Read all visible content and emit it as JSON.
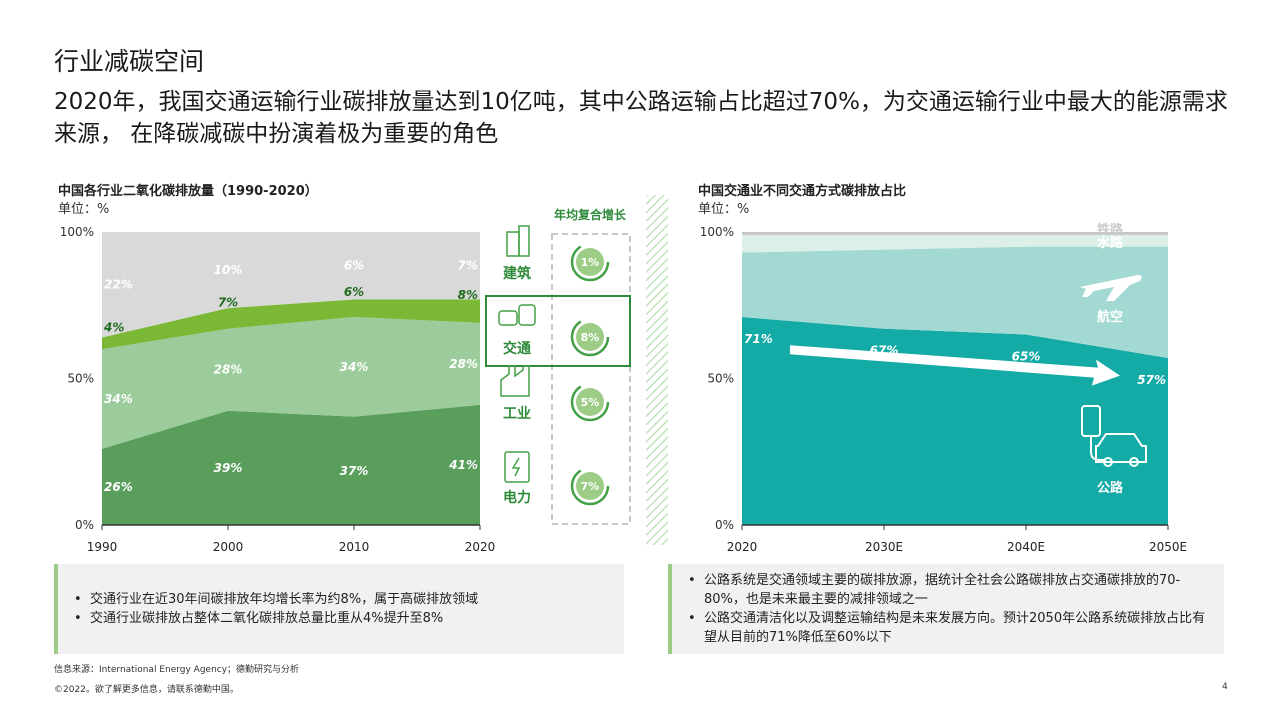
{
  "page": {
    "section_title": "行业减碳空间",
    "headline": "2020年，我国交通运输行业碳排放量达到10亿吨，其中公路运输占比超过70%，为交通运输行业中最大的能源需求来源， 在降碳减碳中扮演着极为重要的角色",
    "source": "信息来源：International Energy Agency；德勤研究与分析",
    "copyright": "©2022。欲了解更多信息，请联系德勤中国。",
    "page_number": "4"
  },
  "colors": {
    "building": "#d9d9d9",
    "transport": "#7ab836",
    "industry": "#9ccc9c",
    "power": "#5a9e5c",
    "gauge_ring": "#43a047",
    "gauge_fill": "#9ccc85",
    "transport_accent": "#2e8b3a",
    "rail": "#c6c6c6",
    "water": "#dcefe9",
    "aviation": "#a3d9d3",
    "road": "#14aaa5"
  },
  "left_chart": {
    "title": "中国各行业二氧化碳排放量（1990-2020）",
    "unit": "单位：%",
    "yticks": [
      "0%",
      "50%",
      "100%"
    ],
    "cagr_title": "年均复合增长",
    "sectors": [
      {
        "label": "建筑",
        "icon": "building-icon",
        "cagr": "1%"
      },
      {
        "label": "交通",
        "icon": "bus-car-icon",
        "cagr": "8%"
      },
      {
        "label": "工业",
        "icon": "factory-icon",
        "cagr": "5%"
      },
      {
        "label": "电力",
        "icon": "electric-box-icon",
        "cagr": "7%"
      }
    ]
  },
  "right_chart": {
    "title": "中国交通业不同交通方式碳排放占比",
    "unit": "单位：%",
    "yticks": [
      "0%",
      "50%",
      "100%"
    ],
    "modes": [
      {
        "label": "铁路",
        "icon": ""
      },
      {
        "label": "水路",
        "icon": ""
      },
      {
        "label": "航空",
        "icon": "airplane-icon"
      },
      {
        "label": "公路",
        "icon": "ev-charging-icon"
      }
    ]
  },
  "chart_data": [
    {
      "type": "area",
      "stacked": "percent",
      "title": "中国各行业二氧化碳排放量（1990-2020）",
      "ylabel": "单位：%",
      "x": [
        "1990",
        "2000",
        "2010",
        "2020"
      ],
      "ylim": [
        0,
        100
      ],
      "series": [
        {
          "name": "电力",
          "values": [
            26,
            39,
            37,
            41
          ],
          "labels": [
            "26%",
            "39%",
            "37%",
            "41%"
          ]
        },
        {
          "name": "工业",
          "values": [
            34,
            28,
            34,
            28
          ],
          "labels": [
            "34%",
            "28%",
            "34%",
            "28%"
          ]
        },
        {
          "name": "交通",
          "values": [
            4,
            7,
            6,
            8
          ],
          "labels": [
            "4%",
            "7%",
            "6%",
            "8%"
          ]
        },
        {
          "name": "建筑",
          "values": [
            22,
            10,
            6,
            7
          ],
          "labels": [
            "22%",
            "10%",
            "6%",
            "7%"
          ]
        }
      ]
    },
    {
      "type": "area",
      "stacked": "percent",
      "title": "中国交通业不同交通方式碳排放占比",
      "ylabel": "单位：%",
      "x": [
        "2020",
        "2030E",
        "2040E",
        "2050E"
      ],
      "ylim": [
        0,
        100
      ],
      "series": [
        {
          "name": "公路",
          "values": [
            71,
            67,
            65,
            57
          ],
          "labels": [
            "71%",
            "67%",
            "65%",
            "57%"
          ]
        },
        {
          "name": "航空",
          "values": [
            22,
            27,
            30,
            38
          ]
        },
        {
          "name": "水路",
          "values": [
            6,
            5,
            4,
            4
          ]
        },
        {
          "name": "铁路",
          "values": [
            1,
            1,
            1,
            1
          ]
        }
      ]
    }
  ],
  "notes_left": [
    "交通行业在近30年间碳排放年均增长率为约8%，属于高碳排放领域",
    "交通行业碳排放占整体二氧化碳排放总量比重从4%提升至8%"
  ],
  "notes_right": [
    "公路系统是交通领域主要的碳排放源，据统计全社会公路碳排放占交通碳排放的70-80%，也是未来最主要的减排领域之一",
    "公路交通清洁化以及调整运输结构是未来发展方向。预计2050年公路系统碳排放占比有望从目前的71%降低至60%以下"
  ]
}
